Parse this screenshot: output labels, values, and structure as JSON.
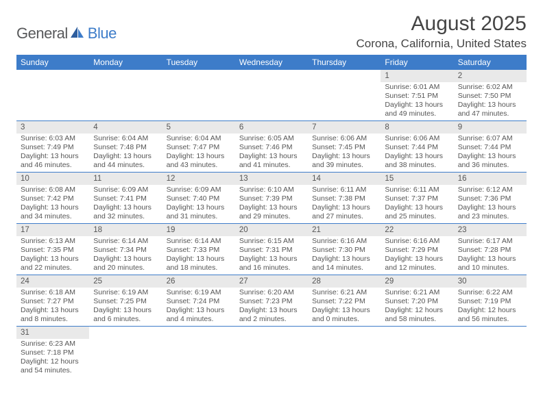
{
  "logo": {
    "part1": "General",
    "part2": "Blue"
  },
  "title": "August 2025",
  "location": "Corona, California, United States",
  "colors": {
    "header_bg": "#3d7cc9",
    "daynum_bg": "#e9e9e9",
    "text": "#555555",
    "page_bg": "#ffffff"
  },
  "days_of_week": [
    "Sunday",
    "Monday",
    "Tuesday",
    "Wednesday",
    "Thursday",
    "Friday",
    "Saturday"
  ],
  "weeks": [
    [
      null,
      null,
      null,
      null,
      null,
      {
        "n": "1",
        "sr": "6:01 AM",
        "ss": "7:51 PM",
        "dl": "13 hours and 49 minutes."
      },
      {
        "n": "2",
        "sr": "6:02 AM",
        "ss": "7:50 PM",
        "dl": "13 hours and 47 minutes."
      }
    ],
    [
      {
        "n": "3",
        "sr": "6:03 AM",
        "ss": "7:49 PM",
        "dl": "13 hours and 46 minutes."
      },
      {
        "n": "4",
        "sr": "6:04 AM",
        "ss": "7:48 PM",
        "dl": "13 hours and 44 minutes."
      },
      {
        "n": "5",
        "sr": "6:04 AM",
        "ss": "7:47 PM",
        "dl": "13 hours and 43 minutes."
      },
      {
        "n": "6",
        "sr": "6:05 AM",
        "ss": "7:46 PM",
        "dl": "13 hours and 41 minutes."
      },
      {
        "n": "7",
        "sr": "6:06 AM",
        "ss": "7:45 PM",
        "dl": "13 hours and 39 minutes."
      },
      {
        "n": "8",
        "sr": "6:06 AM",
        "ss": "7:44 PM",
        "dl": "13 hours and 38 minutes."
      },
      {
        "n": "9",
        "sr": "6:07 AM",
        "ss": "7:44 PM",
        "dl": "13 hours and 36 minutes."
      }
    ],
    [
      {
        "n": "10",
        "sr": "6:08 AM",
        "ss": "7:42 PM",
        "dl": "13 hours and 34 minutes."
      },
      {
        "n": "11",
        "sr": "6:09 AM",
        "ss": "7:41 PM",
        "dl": "13 hours and 32 minutes."
      },
      {
        "n": "12",
        "sr": "6:09 AM",
        "ss": "7:40 PM",
        "dl": "13 hours and 31 minutes."
      },
      {
        "n": "13",
        "sr": "6:10 AM",
        "ss": "7:39 PM",
        "dl": "13 hours and 29 minutes."
      },
      {
        "n": "14",
        "sr": "6:11 AM",
        "ss": "7:38 PM",
        "dl": "13 hours and 27 minutes."
      },
      {
        "n": "15",
        "sr": "6:11 AM",
        "ss": "7:37 PM",
        "dl": "13 hours and 25 minutes."
      },
      {
        "n": "16",
        "sr": "6:12 AM",
        "ss": "7:36 PM",
        "dl": "13 hours and 23 minutes."
      }
    ],
    [
      {
        "n": "17",
        "sr": "6:13 AM",
        "ss": "7:35 PM",
        "dl": "13 hours and 22 minutes."
      },
      {
        "n": "18",
        "sr": "6:14 AM",
        "ss": "7:34 PM",
        "dl": "13 hours and 20 minutes."
      },
      {
        "n": "19",
        "sr": "6:14 AM",
        "ss": "7:33 PM",
        "dl": "13 hours and 18 minutes."
      },
      {
        "n": "20",
        "sr": "6:15 AM",
        "ss": "7:31 PM",
        "dl": "13 hours and 16 minutes."
      },
      {
        "n": "21",
        "sr": "6:16 AM",
        "ss": "7:30 PM",
        "dl": "13 hours and 14 minutes."
      },
      {
        "n": "22",
        "sr": "6:16 AM",
        "ss": "7:29 PM",
        "dl": "13 hours and 12 minutes."
      },
      {
        "n": "23",
        "sr": "6:17 AM",
        "ss": "7:28 PM",
        "dl": "13 hours and 10 minutes."
      }
    ],
    [
      {
        "n": "24",
        "sr": "6:18 AM",
        "ss": "7:27 PM",
        "dl": "13 hours and 8 minutes."
      },
      {
        "n": "25",
        "sr": "6:19 AM",
        "ss": "7:25 PM",
        "dl": "13 hours and 6 minutes."
      },
      {
        "n": "26",
        "sr": "6:19 AM",
        "ss": "7:24 PM",
        "dl": "13 hours and 4 minutes."
      },
      {
        "n": "27",
        "sr": "6:20 AM",
        "ss": "7:23 PM",
        "dl": "13 hours and 2 minutes."
      },
      {
        "n": "28",
        "sr": "6:21 AM",
        "ss": "7:22 PM",
        "dl": "13 hours and 0 minutes."
      },
      {
        "n": "29",
        "sr": "6:21 AM",
        "ss": "7:20 PM",
        "dl": "12 hours and 58 minutes."
      },
      {
        "n": "30",
        "sr": "6:22 AM",
        "ss": "7:19 PM",
        "dl": "12 hours and 56 minutes."
      }
    ],
    [
      {
        "n": "31",
        "sr": "6:23 AM",
        "ss": "7:18 PM",
        "dl": "12 hours and 54 minutes."
      },
      null,
      null,
      null,
      null,
      null,
      null
    ]
  ],
  "labels": {
    "sunrise": "Sunrise: ",
    "sunset": "Sunset: ",
    "daylight": "Daylight: "
  }
}
